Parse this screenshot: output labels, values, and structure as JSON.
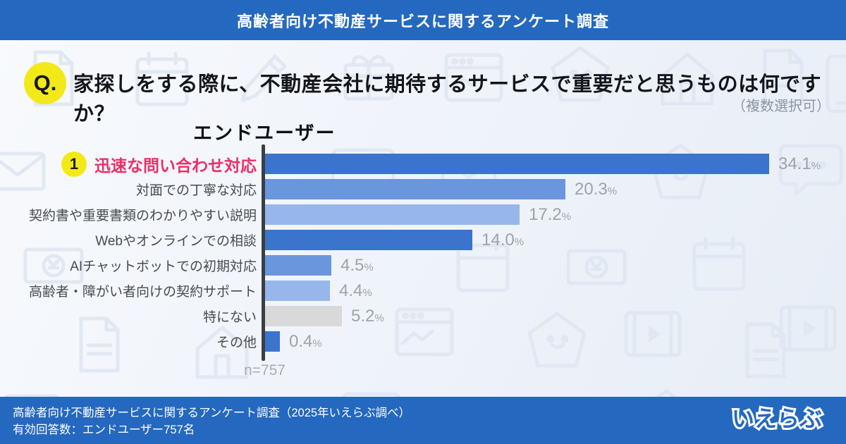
{
  "header": {
    "title": "高齢者向け不動産サービスに関するアンケート調査"
  },
  "question": {
    "badge": "Q.",
    "text": "家探しをする際に、不動産会社に期待するサービスで重要だと思うものは何ですか？",
    "note": "（複数選択可）"
  },
  "chart_data": {
    "type": "bar",
    "orientation": "horizontal",
    "title": "エンドユーザー",
    "unit": "%",
    "xlim": [
      0,
      36
    ],
    "grid": false,
    "legend": "none",
    "categories": [
      "迅速な問い合わせ対応",
      "対面での丁寧な対応",
      "契約書や重要書類のわかりやすい説明",
      "Webやオンラインでの相談",
      "AIチャットボットでの初期対応",
      "高齢者・障がい者向けの契約サポート",
      "特にない",
      "その他"
    ],
    "values": [
      34.1,
      20.3,
      17.2,
      14.0,
      4.5,
      4.4,
      5.2,
      0.4
    ],
    "value_labels": [
      "34.1",
      "20.3",
      "17.2",
      "14.0",
      "4.5",
      "4.4",
      "5.2",
      "0.4"
    ],
    "bar_colors": [
      "#3B74CC",
      "#6A96DE",
      "#97B6EC",
      "#3B74CC",
      "#6A96DE",
      "#97B6EC",
      "#D9D9D9",
      "#3B74CC"
    ],
    "highlight": {
      "index": 0,
      "rank_badge": "1",
      "label_color": "#ED2E68",
      "badge_color": "#F3E919"
    },
    "sample_label": "n=757"
  },
  "footer": {
    "line1": "高齢者向け不動産サービスに関するアンケート調査（2025年いえらぶ調べ）",
    "line2": "有効回答数：エンドユーザー757名",
    "logo": "いえらぶ"
  },
  "colors": {
    "band_blue": "#2468BF",
    "bar_dark": "#3B74CC",
    "bar_medium": "#6A96DE",
    "bar_light": "#97B6EC",
    "bar_gray": "#D9D9D9",
    "highlight_pink": "#ED2E68",
    "badge_yellow": "#F3E919",
    "axis_dark": "#3A3E45",
    "value_gray": "#9EA3AA"
  }
}
